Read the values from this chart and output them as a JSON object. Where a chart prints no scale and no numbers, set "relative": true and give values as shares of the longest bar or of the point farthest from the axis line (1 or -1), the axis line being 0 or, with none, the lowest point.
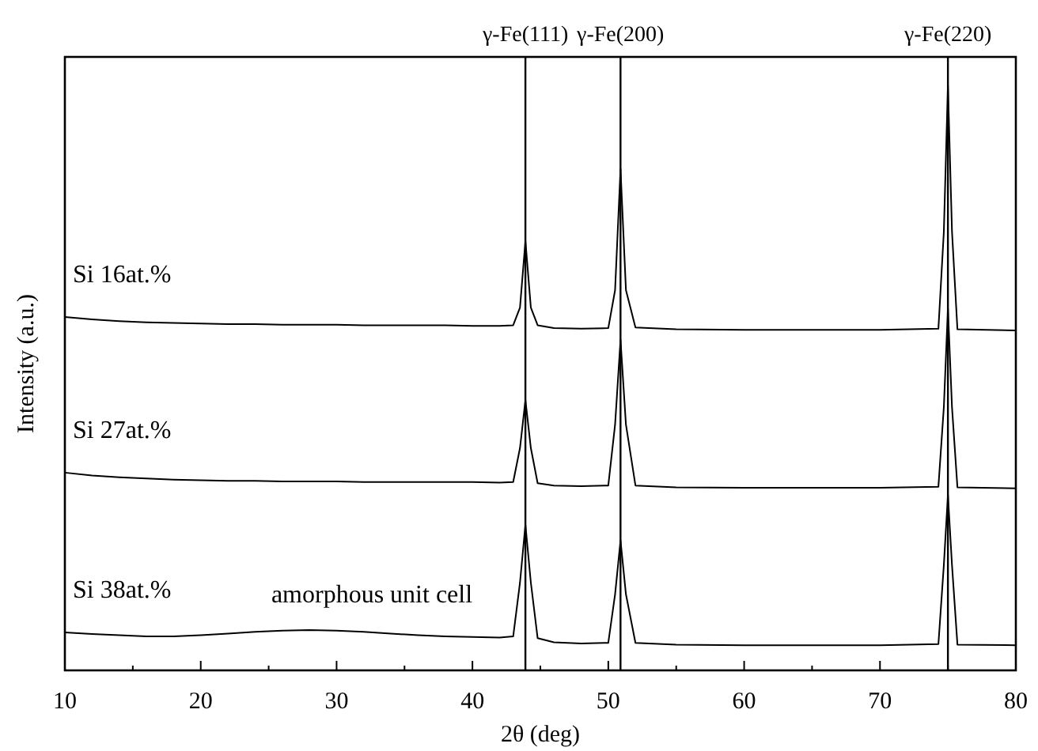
{
  "chart_data": {
    "type": "line",
    "relative": true,
    "xlabel": "2θ (deg)",
    "ylabel": "Intensity (a.u.)",
    "x": [
      10,
      12,
      14,
      16,
      18,
      20,
      22,
      24,
      26,
      28,
      30,
      32,
      34,
      36,
      38,
      40,
      42,
      43,
      43.5,
      43.9,
      44.3,
      44.8,
      46,
      48,
      50,
      50.5,
      50.9,
      51.3,
      52,
      55,
      60,
      65,
      70,
      74.3,
      74.7,
      75,
      75.3,
      75.7,
      80
    ],
    "series": [
      {
        "name": "Si 16at.%",
        "color": "#000000",
        "values": [
          0.604,
          0.6,
          0.597,
          0.595,
          0.594,
          0.593,
          0.592,
          0.592,
          0.591,
          0.591,
          0.591,
          0.59,
          0.59,
          0.59,
          0.59,
          0.589,
          0.589,
          0.59,
          0.62,
          0.734,
          0.62,
          0.59,
          0.585,
          0.584,
          0.585,
          0.65,
          0.857,
          0.65,
          0.586,
          0.583,
          0.582,
          0.582,
          0.582,
          0.584,
          0.75,
          1.0,
          0.75,
          0.583,
          0.581
        ]
      },
      {
        "name": "Si 27at.%",
        "color": "#000000",
        "values": [
          0.338,
          0.333,
          0.33,
          0.328,
          0.326,
          0.325,
          0.324,
          0.324,
          0.323,
          0.323,
          0.323,
          0.322,
          0.322,
          0.322,
          0.322,
          0.322,
          0.321,
          0.322,
          0.38,
          0.462,
          0.38,
          0.32,
          0.316,
          0.315,
          0.316,
          0.42,
          0.565,
          0.42,
          0.316,
          0.313,
          0.312,
          0.312,
          0.312,
          0.314,
          0.45,
          0.619,
          0.45,
          0.313,
          0.311
        ]
      },
      {
        "name": "Si 38at.%",
        "color": "#000000",
        "values": [
          0.065,
          0.062,
          0.06,
          0.058,
          0.058,
          0.06,
          0.063,
          0.066,
          0.068,
          0.069,
          0.068,
          0.066,
          0.063,
          0.06,
          0.058,
          0.057,
          0.056,
          0.058,
          0.15,
          0.249,
          0.15,
          0.055,
          0.048,
          0.046,
          0.047,
          0.13,
          0.222,
          0.13,
          0.047,
          0.044,
          0.043,
          0.043,
          0.043,
          0.045,
          0.18,
          0.3,
          0.18,
          0.044,
          0.043
        ]
      }
    ],
    "xlim": [
      10,
      80
    ],
    "xticks": [
      10,
      {
        "value": 15,
        "label": null
      },
      20,
      {
        "value": 25,
        "label": null
      },
      30,
      {
        "value": 35,
        "label": null
      },
      40,
      {
        "value": 45,
        "label": null
      },
      50,
      {
        "value": 55,
        "label": null
      },
      60,
      {
        "value": 65,
        "label": null
      },
      70,
      {
        "value": 75,
        "label": null
      },
      80
    ],
    "ref_lines": [
      {
        "axis": "x",
        "value": 43.9,
        "label": "γ-Fe(111)",
        "color": "#000000"
      },
      {
        "axis": "x",
        "value": 50.9,
        "label": "γ-Fe(200)",
        "color": "#000000"
      },
      {
        "axis": "x",
        "value": 75.0,
        "label": "γ-Fe(220)",
        "color": "#000000"
      }
    ],
    "annotations": [
      "amorphous unit cell"
    ],
    "grid": false,
    "marker": "none",
    "line_style": "solid"
  }
}
